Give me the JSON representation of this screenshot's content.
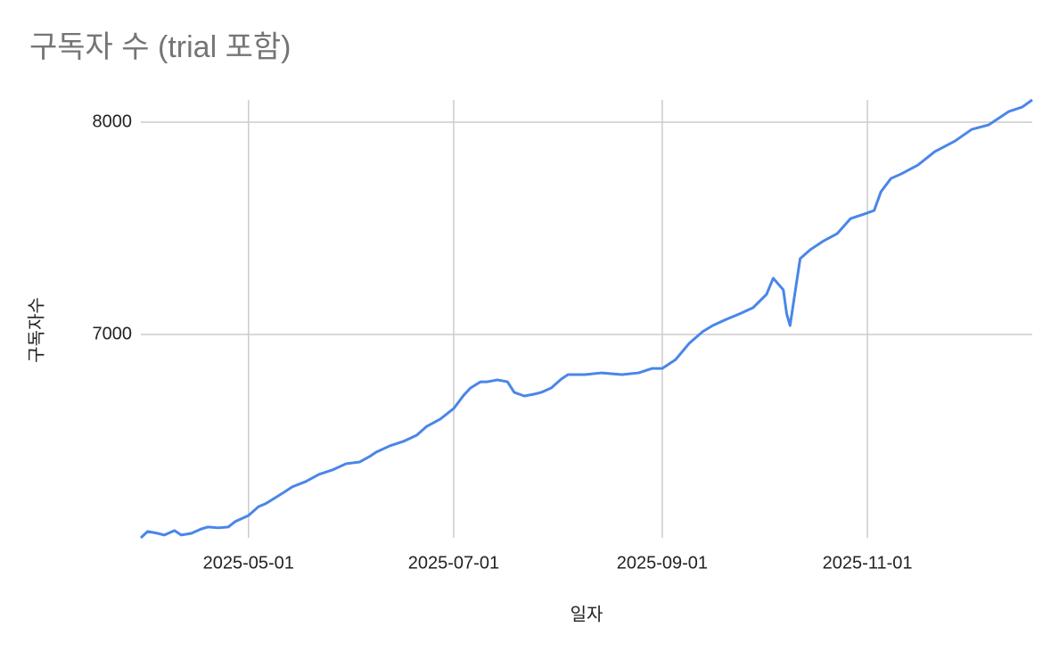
{
  "chart_data": {
    "type": "line",
    "title": "구독자 수 (trial 포함)",
    "x_label": "일자",
    "y_label": "구독자수",
    "x": [
      "2025-03-30",
      "2025-04-01",
      "2025-04-04",
      "2025-04-06",
      "2025-04-09",
      "2025-04-11",
      "2025-04-14",
      "2025-04-17",
      "2025-04-19",
      "2025-04-22",
      "2025-04-25",
      "2025-04-27",
      "2025-05-01",
      "2025-05-04",
      "2025-05-06",
      "2025-05-09",
      "2025-05-12",
      "2025-05-14",
      "2025-05-18",
      "2025-05-22",
      "2025-05-26",
      "2025-05-30",
      "2025-06-03",
      "2025-06-06",
      "2025-06-08",
      "2025-06-12",
      "2025-06-16",
      "2025-06-20",
      "2025-06-23",
      "2025-06-27",
      "2025-07-01",
      "2025-07-04",
      "2025-07-06",
      "2025-07-09",
      "2025-07-11",
      "2025-07-14",
      "2025-07-17",
      "2025-07-19",
      "2025-07-22",
      "2025-07-25",
      "2025-07-27",
      "2025-07-30",
      "2025-08-02",
      "2025-08-04",
      "2025-08-09",
      "2025-08-14",
      "2025-08-20",
      "2025-08-25",
      "2025-08-29",
      "2025-09-01",
      "2025-09-05",
      "2025-09-09",
      "2025-09-13",
      "2025-09-16",
      "2025-09-20",
      "2025-09-24",
      "2025-09-28",
      "2025-10-02",
      "2025-10-04",
      "2025-10-07",
      "2025-10-08",
      "2025-10-09",
      "2025-10-12",
      "2025-10-15",
      "2025-10-19",
      "2025-10-23",
      "2025-10-27",
      "2025-10-31",
      "2025-11-03",
      "2025-11-05",
      "2025-11-08",
      "2025-11-11",
      "2025-11-16",
      "2025-11-21",
      "2025-11-27",
      "2025-12-02",
      "2025-12-07",
      "2025-12-13",
      "2025-12-17",
      "2025-12-20"
    ],
    "series": [
      {
        "name": "구독자수",
        "color": "#4a86e8",
        "values": [
          6042,
          6072,
          6063,
          6055,
          6076,
          6055,
          6063,
          6084,
          6093,
          6089,
          6093,
          6118,
          6147,
          6189,
          6202,
          6231,
          6261,
          6282,
          6307,
          6341,
          6362,
          6391,
          6399,
          6425,
          6446,
          6475,
          6496,
          6525,
          6567,
          6601,
          6651,
          6714,
          6748,
          6777,
          6777,
          6786,
          6777,
          6727,
          6710,
          6719,
          6727,
          6748,
          6790,
          6811,
          6811,
          6819,
          6811,
          6819,
          6840,
          6840,
          6882,
          6958,
          7013,
          7042,
          7071,
          7097,
          7126,
          7189,
          7265,
          7210,
          7097,
          7042,
          7357,
          7399,
          7441,
          7475,
          7546,
          7567,
          7584,
          7672,
          7735,
          7756,
          7798,
          7861,
          7911,
          7966,
          7987,
          8050,
          8071,
          8105
        ]
      }
    ],
    "xlim": [
      "2025-03-30",
      "2025-12-20"
    ],
    "xticks": [
      "2025-05-01",
      "2025-07-01",
      "2025-09-01",
      "2025-11-01"
    ],
    "ylim": [
      6042,
      8105
    ],
    "yticks": [
      7000,
      8000
    ],
    "grid": true
  }
}
